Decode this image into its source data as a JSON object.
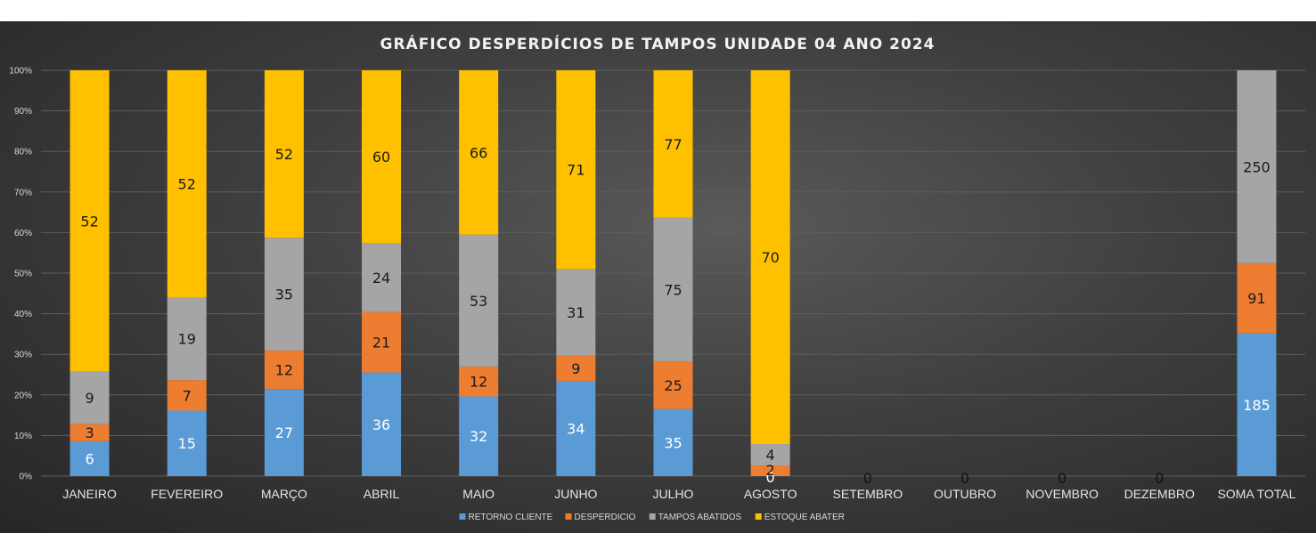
{
  "chart_data": {
    "type": "bar",
    "stacking": "percent",
    "title": "GRÁFICO DESPERDÍCIOS DE TAMPOS UNIDADE 04 ANO 2024",
    "categories": [
      "JANEIRO",
      "FEVEREIRO",
      "MARÇO",
      "ABRIL",
      "MAIO",
      "JUNHO",
      "JULHO",
      "AGOSTO",
      "SETEMBRO",
      "OUTUBRO",
      "NOVEMBRO",
      "DEZEMBRO",
      "SOMA TOTAL"
    ],
    "series": [
      {
        "name": "RETORNO CLIENTE",
        "color": "#5b9bd5",
        "values": [
          6,
          15,
          27,
          36,
          32,
          34,
          35,
          0,
          0,
          0,
          0,
          0,
          185
        ]
      },
      {
        "name": "DESPERDICIO",
        "color": "#ed7d31",
        "values": [
          3,
          7,
          12,
          21,
          12,
          9,
          25,
          2,
          null,
          null,
          null,
          null,
          91
        ]
      },
      {
        "name": "TAMPOS ABATIDOS",
        "color": "#a5a5a5",
        "values": [
          9,
          19,
          35,
          24,
          53,
          31,
          75,
          4,
          null,
          null,
          null,
          null,
          250
        ]
      },
      {
        "name": "ESTOQUE ABATER",
        "color": "#ffc000",
        "values": [
          52,
          52,
          52,
          60,
          66,
          71,
          77,
          70,
          null,
          null,
          null,
          null,
          null
        ]
      }
    ],
    "y_ticks": [
      "0%",
      "10%",
      "20%",
      "30%",
      "40%",
      "50%",
      "60%",
      "70%",
      "80%",
      "90%",
      "100%"
    ],
    "ylim": [
      0,
      100
    ],
    "grid": true,
    "legend_position": "bottom"
  }
}
